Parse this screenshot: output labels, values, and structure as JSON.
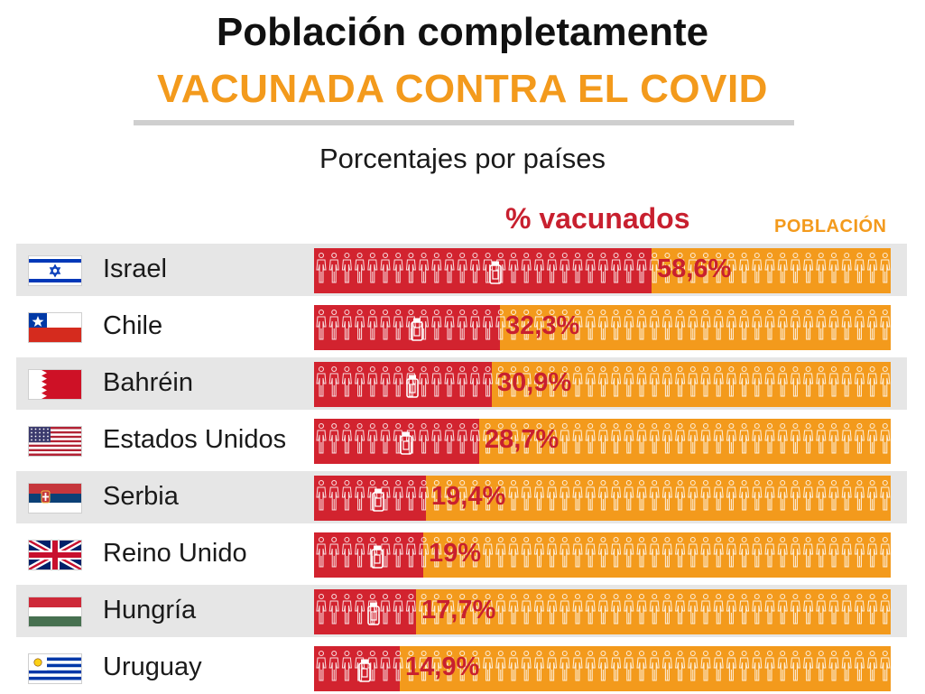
{
  "header": {
    "title_line1": "Población completamente",
    "title_line2": "VACUNADA CONTRA EL COVID",
    "subtitle": "Porcentajes por países"
  },
  "legend": {
    "vaccinated": "% vacunados",
    "population": "POBLACIÓN"
  },
  "colors": {
    "vaccinated": "#d2232f",
    "vaccinated_text": "#c8202f",
    "population": "#f39a1c",
    "row_shade": "#e6e6e6"
  },
  "chart_data": {
    "type": "bar",
    "orientation": "horizontal",
    "unit": "%",
    "xlim": [
      0,
      100
    ],
    "categories": [
      "Israel",
      "Chile",
      "Bahréin",
      "Estados Unidos",
      "Serbia",
      "Reino Unido",
      "Hungría",
      "Uruguay"
    ],
    "values": [
      58.6,
      32.3,
      30.9,
      28.7,
      19.4,
      19,
      17.7,
      14.9
    ],
    "labels": [
      "58,6%",
      "32,3%",
      "30,9%",
      "28,7%",
      "19,4%",
      "19%",
      "17,7%",
      "14,9%"
    ],
    "flags": [
      "israel-flag-icon",
      "chile-flag-icon",
      "bahrain-flag-icon",
      "usa-flag-icon",
      "serbia-flag-icon",
      "uk-flag-icon",
      "hungary-flag-icon",
      "uruguay-flag-icon"
    ]
  }
}
